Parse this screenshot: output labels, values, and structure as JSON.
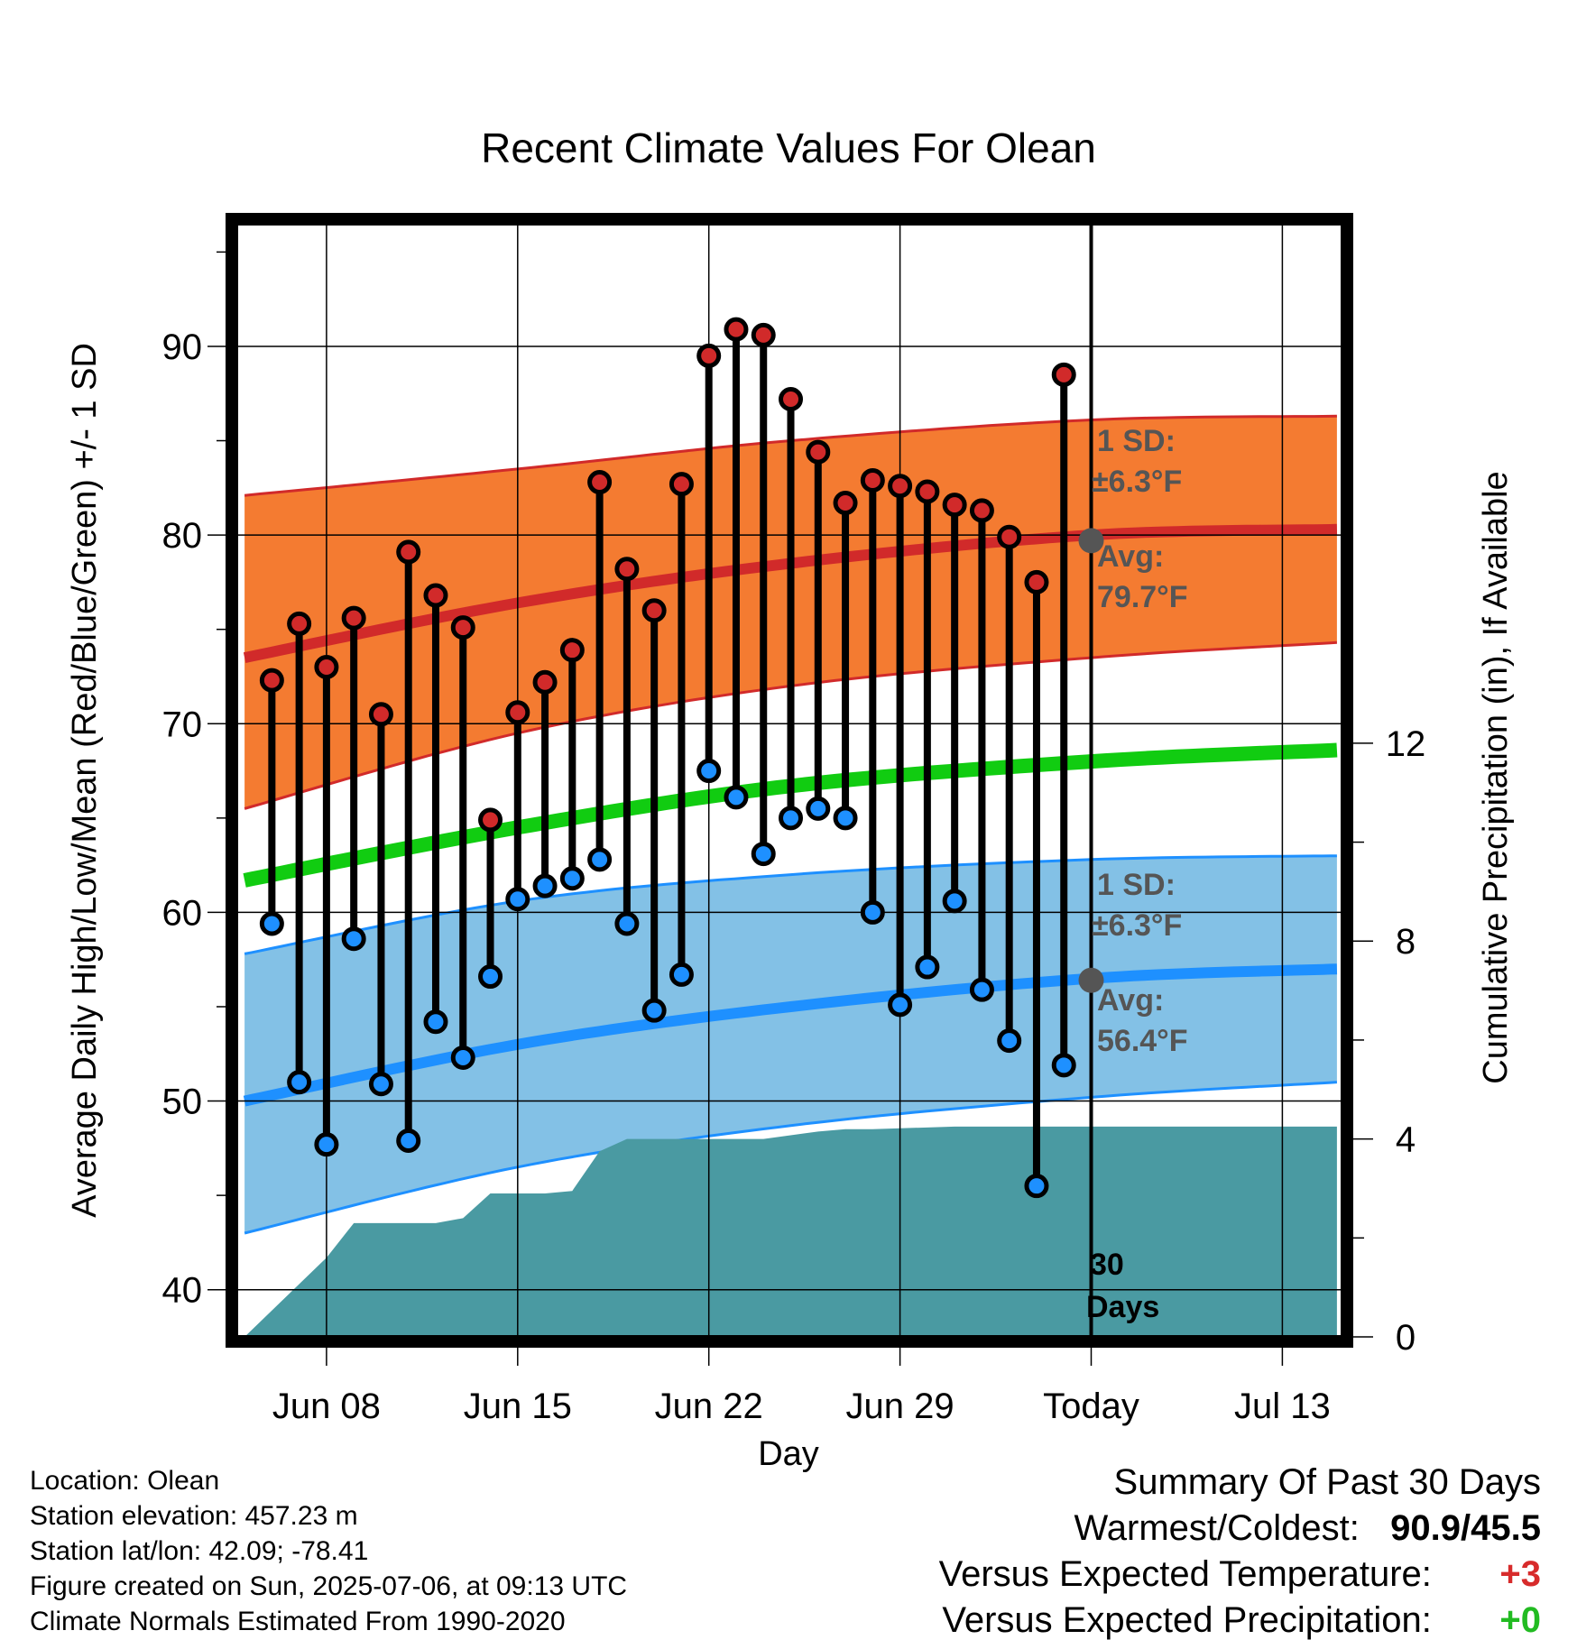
{
  "chart_data": {
    "type": "line",
    "title": "Recent Climate Values For Olean",
    "xlabel": "Day",
    "ylabel": "Average Daily High/Low/Mean (Red/Blue/Green) +/- 1 SD",
    "ylabel_right": "Cumulative Precipitation (in), If Available",
    "ylim": [
      37.5,
      96.5
    ],
    "ylim_right": [
      0,
      22.5
    ],
    "yticks": [
      40,
      50,
      60,
      70,
      80,
      90
    ],
    "yticks_right": [
      0,
      4,
      8,
      12
    ],
    "xticks": [
      {
        "day": 8,
        "label": "Jun 08"
      },
      {
        "day": 15,
        "label": "Jun 15"
      },
      {
        "day": 22,
        "label": "Jun 22"
      },
      {
        "day": 29,
        "label": "Jun 29"
      },
      {
        "day": 36,
        "label": "Today"
      },
      {
        "day": 43,
        "label": "Jul 13"
      }
    ],
    "xlim": [
      4.7,
      45.2
    ],
    "grid": true,
    "colors": {
      "high": "#d12a2a",
      "low": "#1e90ff",
      "mean": "#11cc11",
      "high_band": "#f47b31",
      "low_band": "#83c1e6",
      "precip": "#4a9aa2",
      "avg_marker": "#555555"
    },
    "daily": {
      "day": [
        6,
        7,
        8,
        9,
        10,
        11,
        12,
        13,
        14,
        15,
        16,
        17,
        18,
        19,
        20,
        21,
        22,
        23,
        24,
        25,
        26,
        27,
        28,
        29,
        30,
        31,
        32,
        33,
        34,
        35
      ],
      "high": [
        72.3,
        75.3,
        73.0,
        75.6,
        70.5,
        79.1,
        76.8,
        75.1,
        64.9,
        70.6,
        72.2,
        73.9,
        82.8,
        78.2,
        76.0,
        82.7,
        89.5,
        90.9,
        90.6,
        87.2,
        84.4,
        81.7,
        82.9,
        82.6,
        82.3,
        81.6,
        81.3,
        79.9,
        77.5,
        88.5
      ],
      "low": [
        59.4,
        51.0,
        47.7,
        58.6,
        50.9,
        47.9,
        54.2,
        52.3,
        56.6,
        60.7,
        61.4,
        61.8,
        62.8,
        59.4,
        54.8,
        56.7,
        67.5,
        66.1,
        63.1,
        65.0,
        65.5,
        65.0,
        60.0,
        55.1,
        57.1,
        60.6,
        55.9,
        53.2,
        45.5,
        51.9
      ]
    },
    "normals": {
      "day": [
        5,
        15,
        25,
        36,
        45
      ],
      "high_avg": [
        73.5,
        76.4,
        78.5,
        80.0,
        80.3
      ],
      "high_sd_upper": [
        82.1,
        83.5,
        85.0,
        86.1,
        86.3
      ],
      "high_sd_lower": [
        65.5,
        69.5,
        72.0,
        73.5,
        74.3
      ],
      "mean": [
        61.7,
        64.5,
        66.7,
        68.0,
        68.6
      ],
      "low_avg": [
        50.0,
        53.0,
        55.0,
        56.5,
        57.0
      ],
      "low_sd_upper": [
        57.8,
        60.6,
        62.0,
        62.8,
        63.0
      ],
      "low_sd_lower": [
        43.0,
        46.5,
        48.7,
        50.2,
        51.0
      ]
    },
    "precip_cumulative": {
      "day": [
        5,
        8,
        9,
        10,
        11,
        12,
        13,
        14,
        15,
        16,
        17,
        18,
        19,
        20,
        24,
        26,
        27,
        28,
        31,
        45
      ],
      "value": [
        0,
        1.6,
        2.3,
        2.3,
        2.3,
        2.3,
        2.4,
        2.9,
        2.9,
        2.9,
        2.95,
        3.75,
        4.0,
        4.0,
        4.0,
        4.15,
        4.2,
        4.2,
        4.25,
        4.25
      ]
    },
    "annotations": {
      "high_sd_label": "1 SD:",
      "high_sd_value": "±6.3°F",
      "high_avg_label": "Avg:",
      "high_avg_value": "79.7°F",
      "low_sd_label": "1 SD:",
      "low_sd_value": "±6.3°F",
      "low_avg_label": "Avg:",
      "low_avg_value": "56.4°F",
      "days_label_1": "30",
      "days_label_2": "Days",
      "today_day": 36,
      "today_high_avg": 79.7,
      "today_low_avg": 56.4
    }
  },
  "footer": {
    "location": "Location: Olean",
    "elevation": "Station elevation: 457.23 m",
    "latlon": "Station lat/lon: 42.09; -78.41",
    "created": "Figure created on Sun, 2025-07-06, at 09:13 UTC",
    "normals": "Climate Normals Estimated From 1990-2020"
  },
  "summary": {
    "heading": "Summary Of Past 30 Days",
    "warm_cold_label": "Warmest/Coldest:",
    "warm_cold_value": "90.9/45.5",
    "temp_label": "Versus Expected Temperature:",
    "temp_value": "+3",
    "precip_label": "Versus Expected Precipitation:",
    "precip_value": "+0"
  }
}
